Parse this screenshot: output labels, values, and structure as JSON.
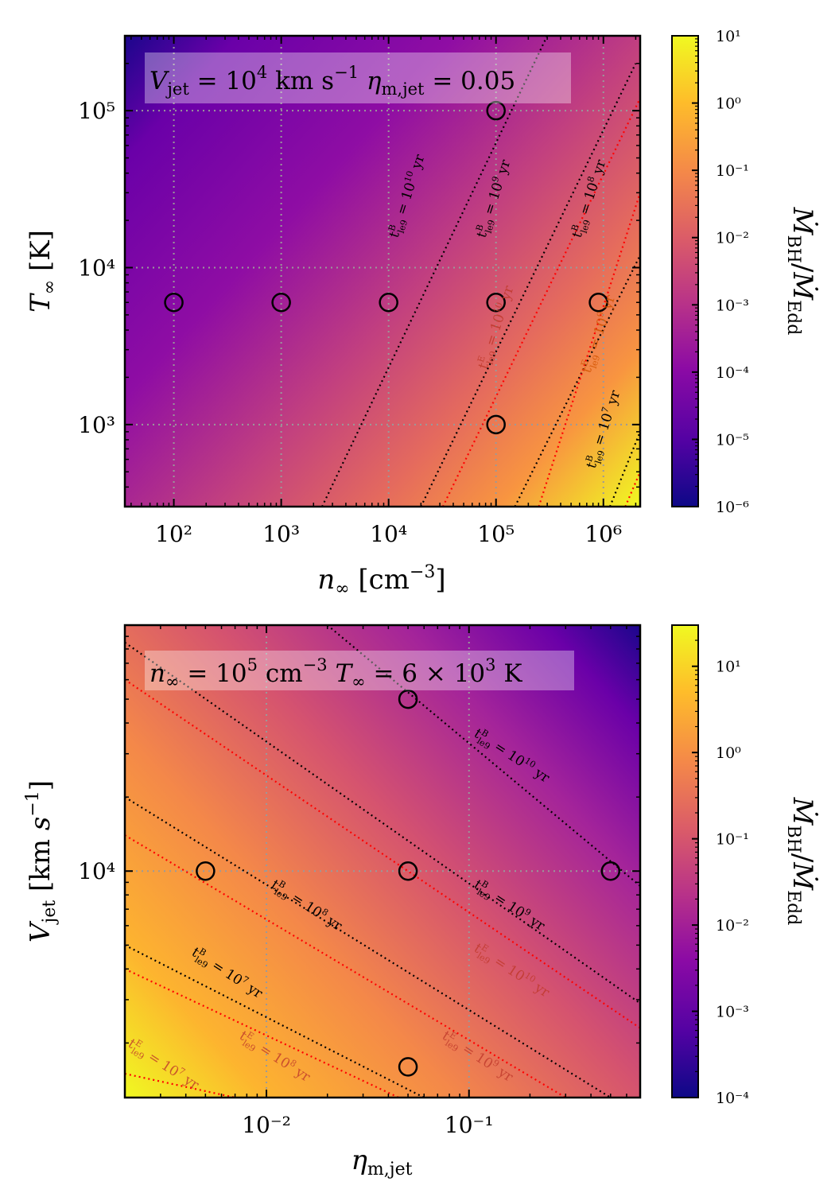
{
  "chart_data": [
    {
      "type": "heatmap",
      "panel": "top",
      "annotation": "V_jet = 10^4 km s^-1  η_m,jet = 0.05",
      "xlabel": "n∞ [cm⁻³]",
      "ylabel": "T∞ [K]",
      "x_scale": "log",
      "y_scale": "log",
      "xlim": [
        35,
        2200000
      ],
      "ylim": [
        300,
        300000
      ],
      "x_ticks": [
        {
          "value": 100,
          "label": "10²"
        },
        {
          "value": 1000,
          "label": "10³"
        },
        {
          "value": 10000,
          "label": "10⁴"
        },
        {
          "value": 100000,
          "label": "10⁵"
        },
        {
          "value": 1000000,
          "label": "10⁶"
        }
      ],
      "y_ticks": [
        {
          "value": 1000,
          "label": "10³"
        },
        {
          "value": 10000,
          "label": "10⁴"
        },
        {
          "value": 100000,
          "label": "10⁵"
        }
      ],
      "grid": true,
      "colormap": "plasma",
      "colorbar": {
        "label": "Ṁ_BH / Ṁ_Edd",
        "scale": "log",
        "range": [
          1e-06,
          10
        ],
        "ticks": [
          "10⁻⁶",
          "10⁻⁵",
          "10⁻⁴",
          "10⁻³",
          "10⁻²",
          "10⁻¹",
          "10⁰",
          "10¹"
        ]
      },
      "markers": [
        {
          "x": 100,
          "y": 6000
        },
        {
          "x": 1000,
          "y": 6000
        },
        {
          "x": 10000,
          "y": 6000
        },
        {
          "x": 100000,
          "y": 6000
        },
        {
          "x": 900000,
          "y": 6000
        },
        {
          "x": 100000,
          "y": 100000
        },
        {
          "x": 100000,
          "y": 1000
        }
      ],
      "contours": [
        {
          "label": "t^B_le9 = 10^10 yr",
          "color": "#000000",
          "points": [
            [
              2400,
              300
            ],
            [
              300000,
              300000
            ]
          ]
        },
        {
          "label": "t^B_le9 = 10^9 yr",
          "color": "#000000",
          "points": [
            [
              20000,
              300
            ],
            [
              2000000,
              200000
            ]
          ]
        },
        {
          "label": "t^B_le9 = 10^8 yr",
          "color": "#000000",
          "points": [
            [
              150000,
              300
            ],
            [
              2200000,
              12000
            ]
          ]
        },
        {
          "label": "t^B_le9 = 10^7 yr",
          "color": "#000000",
          "points": [
            [
              1150000,
              300
            ],
            [
              2200000,
              900
            ]
          ]
        },
        {
          "label": "t^E_le9 = 10^10 yr",
          "color": "#ff0000",
          "points": [
            [
              32000,
              300
            ],
            [
              2200000,
              120000
            ]
          ]
        },
        {
          "label": "t^E_le9 = 10^9 yr",
          "color": "#ff0000",
          "points": [
            [
              250000,
              300
            ],
            [
              2200000,
              30000
            ]
          ]
        },
        {
          "label": "",
          "color": "#ff0000",
          "points": [
            [
              1600000,
              300
            ],
            [
              2200000,
              500
            ]
          ]
        }
      ]
    },
    {
      "type": "heatmap",
      "panel": "bottom",
      "annotation": "n∞ = 10^5 cm^-3  T∞ = 6×10^3 K",
      "xlabel": "η_m,jet",
      "ylabel": "V_jet [km s⁻¹]",
      "x_scale": "log",
      "y_scale": "log",
      "xlim": [
        0.002,
        0.7
      ],
      "ylim": [
        1200,
        100000
      ],
      "x_ticks": [
        {
          "value": 0.01,
          "label": "10⁻²"
        },
        {
          "value": 0.1,
          "label": "10⁻¹"
        }
      ],
      "y_ticks": [
        {
          "value": 10000,
          "label": "10⁴"
        }
      ],
      "grid": true,
      "colormap": "plasma",
      "colorbar": {
        "label": "Ṁ_BH / Ṁ_Edd",
        "scale": "log",
        "range": [
          0.0001,
          30
        ],
        "ticks": [
          "10⁻⁴",
          "10⁻³",
          "10⁻²",
          "10⁻¹",
          "10⁰",
          "10¹"
        ]
      },
      "markers": [
        {
          "x": 0.005,
          "y": 10000
        },
        {
          "x": 0.05,
          "y": 10000
        },
        {
          "x": 0.5,
          "y": 10000
        },
        {
          "x": 0.05,
          "y": 50000
        },
        {
          "x": 0.05,
          "y": 1600
        }
      ],
      "contours": [
        {
          "label": "t^B_le9 = 10^10 yr",
          "color": "#000000",
          "points": [
            [
              0.02,
              100000
            ],
            [
              0.7,
              8700
            ]
          ]
        },
        {
          "label": "t^B_le9 = 10^9 yr",
          "color": "#000000",
          "points": [
            [
              0.002,
              85000
            ],
            [
              0.7,
              2900
            ]
          ]
        },
        {
          "label": "t^B_le9 = 10^8 yr",
          "color": "#000000",
          "points": [
            [
              0.002,
              20000
            ],
            [
              0.5,
              1200
            ]
          ]
        },
        {
          "label": "t^B_le9 = 10^7 yr",
          "color": "#000000",
          "points": [
            [
              0.002,
              5000
            ],
            [
              0.06,
              1200
            ]
          ]
        },
        {
          "label": "t^E_le9 = 10^10 yr",
          "color": "#ff0000",
          "points": [
            [
              0.002,
              60000
            ],
            [
              0.7,
              2300
            ]
          ]
        },
        {
          "label": "t^E_le9 = 10^9 yr",
          "color": "#ff0000",
          "points": [
            [
              0.002,
              14000
            ],
            [
              0.3,
              1200
            ]
          ]
        },
        {
          "label": "t^E_le9 = 10^8 yr",
          "color": "#ff0000",
          "points": [
            [
              0.002,
              4000
            ],
            [
              0.045,
              1200
            ]
          ]
        },
        {
          "label": "t^E_le9 = 10^7 yr",
          "color": "#ff0000",
          "points": [
            [
              0.002,
              1500
            ],
            [
              0.007,
              1200
            ]
          ]
        }
      ]
    }
  ]
}
